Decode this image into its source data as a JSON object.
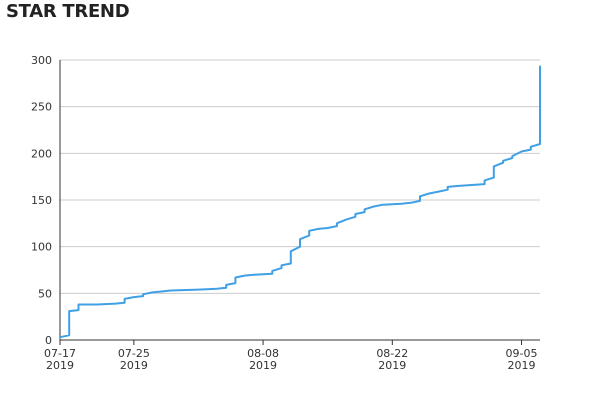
{
  "title": "STAR TREND",
  "colors": {
    "line": "#3fa0e6",
    "grid": "#cccccc",
    "axis": "#333333",
    "text": "#222222"
  },
  "chart_data": {
    "type": "line",
    "title": "STAR TREND",
    "xlabel": "",
    "ylabel": "",
    "ylim": [
      0,
      300
    ],
    "xlim": [
      "2019-07-17",
      "2019-09-07"
    ],
    "grid": "horizontal",
    "legend": "none",
    "y_ticks": [
      0,
      50,
      100,
      150,
      200,
      250,
      300
    ],
    "x_ticks": [
      {
        "date": "2019-07-17",
        "label": "07-17",
        "sublabel": "2019"
      },
      {
        "date": "2019-07-25",
        "label": "07-25",
        "sublabel": "2019"
      },
      {
        "date": "2019-08-08",
        "label": "08-08",
        "sublabel": "2019"
      },
      {
        "date": "2019-08-22",
        "label": "08-22",
        "sublabel": "2019"
      },
      {
        "date": "2019-09-05",
        "label": "09-05",
        "sublabel": "2019"
      }
    ],
    "series": [
      {
        "points": [
          [
            "2019-07-17",
            3
          ],
          [
            "2019-07-17",
            3
          ],
          [
            "2019-07-18",
            5
          ],
          [
            "2019-07-18",
            6
          ],
          [
            "2019-07-18",
            29
          ],
          [
            "2019-07-18",
            31
          ],
          [
            "2019-07-19",
            32
          ],
          [
            "2019-07-19",
            37
          ],
          [
            "2019-07-19",
            38
          ],
          [
            "2019-07-21",
            38
          ],
          [
            "2019-07-23",
            39
          ],
          [
            "2019-07-24",
            40
          ],
          [
            "2019-07-24",
            44
          ],
          [
            "2019-07-25",
            46
          ],
          [
            "2019-07-26",
            47
          ],
          [
            "2019-07-26",
            49
          ],
          [
            "2019-07-27",
            51
          ],
          [
            "2019-07-28",
            52
          ],
          [
            "2019-07-29",
            53
          ],
          [
            "2019-08-01",
            54
          ],
          [
            "2019-08-03",
            55
          ],
          [
            "2019-08-04",
            56
          ],
          [
            "2019-08-04",
            59
          ],
          [
            "2019-08-05",
            61
          ],
          [
            "2019-08-05",
            67
          ],
          [
            "2019-08-06",
            69
          ],
          [
            "2019-08-07",
            70
          ],
          [
            "2019-08-09",
            71
          ],
          [
            "2019-08-09",
            74
          ],
          [
            "2019-08-10",
            77
          ],
          [
            "2019-08-10",
            80
          ],
          [
            "2019-08-11",
            82
          ],
          [
            "2019-08-11",
            89
          ],
          [
            "2019-08-11",
            95
          ],
          [
            "2019-08-12",
            100
          ],
          [
            "2019-08-12",
            108
          ],
          [
            "2019-08-13",
            112
          ],
          [
            "2019-08-13",
            117
          ],
          [
            "2019-08-14",
            119
          ],
          [
            "2019-08-15",
            120
          ],
          [
            "2019-08-16",
            122
          ],
          [
            "2019-08-16",
            125
          ],
          [
            "2019-08-17",
            129
          ],
          [
            "2019-08-18",
            132
          ],
          [
            "2019-08-18",
            135
          ],
          [
            "2019-08-19",
            137
          ],
          [
            "2019-08-19",
            140
          ],
          [
            "2019-08-20",
            143
          ],
          [
            "2019-08-21",
            145
          ],
          [
            "2019-08-23",
            146
          ],
          [
            "2019-08-24",
            147
          ],
          [
            "2019-08-25",
            149
          ],
          [
            "2019-08-25",
            154
          ],
          [
            "2019-08-26",
            157
          ],
          [
            "2019-08-27",
            159
          ],
          [
            "2019-08-28",
            161
          ],
          [
            "2019-08-28",
            164
          ],
          [
            "2019-08-29",
            165
          ],
          [
            "2019-09-01",
            167
          ],
          [
            "2019-09-01",
            171
          ],
          [
            "2019-09-02",
            174
          ],
          [
            "2019-09-02",
            186
          ],
          [
            "2019-09-03",
            190
          ],
          [
            "2019-09-03",
            192
          ],
          [
            "2019-09-04",
            195
          ],
          [
            "2019-09-04",
            197
          ],
          [
            "2019-09-05",
            202
          ],
          [
            "2019-09-06",
            204
          ],
          [
            "2019-09-06",
            205
          ],
          [
            "2019-09-06",
            207
          ],
          [
            "2019-09-07",
            210
          ],
          [
            "2019-09-07",
            252
          ],
          [
            "2019-09-07",
            265
          ],
          [
            "2019-09-07",
            272
          ],
          [
            "2019-09-07",
            276
          ],
          [
            "2019-09-07",
            281
          ],
          [
            "2019-09-07",
            285
          ],
          [
            "2019-09-07",
            289
          ],
          [
            "2019-09-07",
            291
          ],
          [
            "2019-09-07",
            293
          ]
        ]
      }
    ]
  }
}
